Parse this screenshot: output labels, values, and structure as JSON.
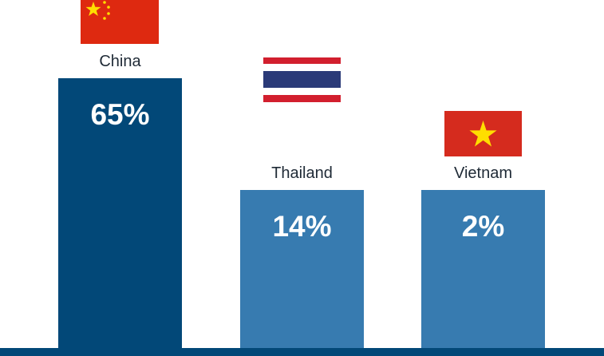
{
  "chart_data": {
    "type": "bar",
    "categories": [
      "China",
      "Thailand",
      "Vietnam"
    ],
    "values": [
      65,
      14,
      2
    ],
    "value_labels": [
      "65%",
      "14%",
      "2%"
    ],
    "flag_icons": [
      "china-flag-icon",
      "thailand-flag-icon",
      "vietnam-flag-icon"
    ],
    "colors": {
      "highlight_bar": "#024878",
      "bar": "#377bb0",
      "baseline": "#024878",
      "label_text": "#1f2a36",
      "value_text": "#ffffff"
    },
    "grid": false,
    "legend": "none"
  }
}
